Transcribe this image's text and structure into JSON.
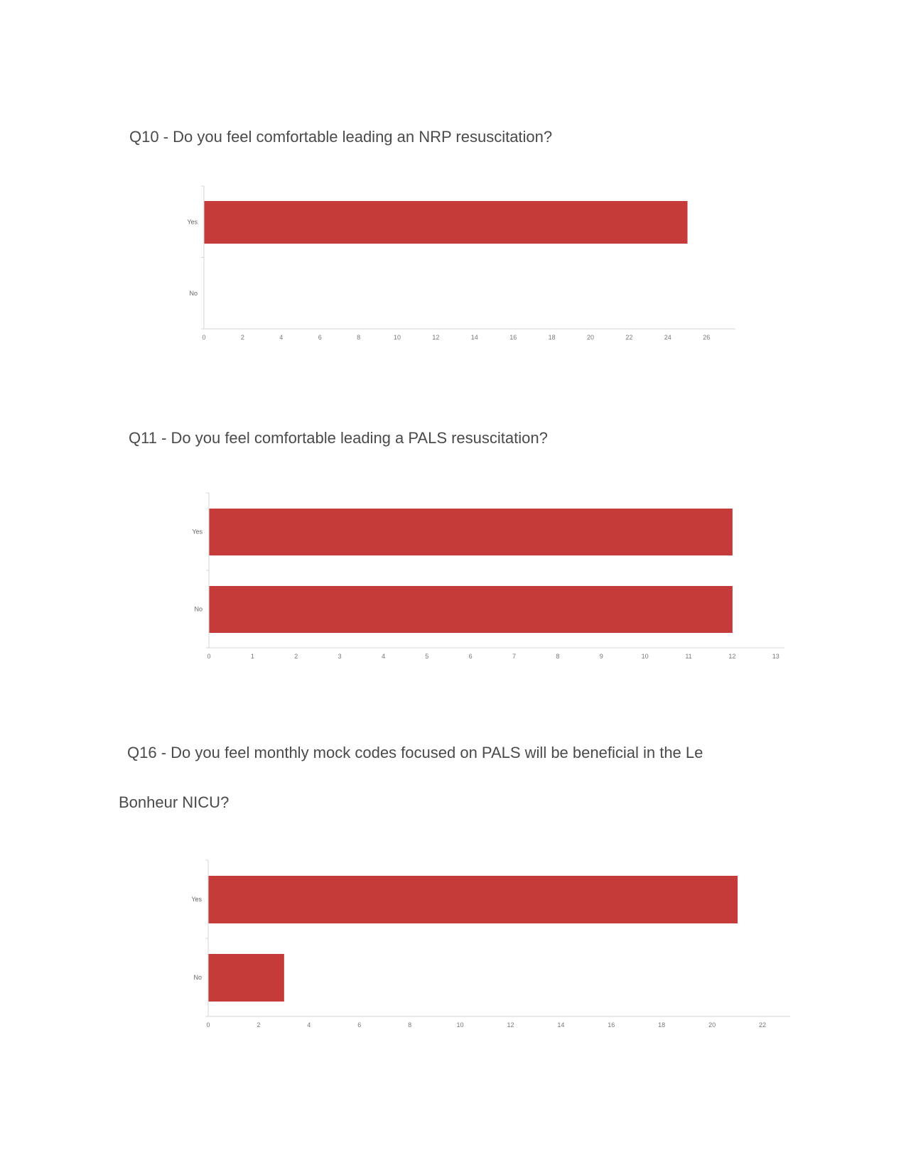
{
  "chart_data": [
    {
      "type": "bar",
      "orientation": "horizontal",
      "title": "Q10 - Do you feel comfortable leading an NRP resuscitation?",
      "categories": [
        "Yes",
        "No"
      ],
      "values": [
        25,
        0
      ],
      "xlim": [
        0,
        27.5
      ],
      "xticks": [
        "0",
        "2",
        "4",
        "6",
        "8",
        "10",
        "12",
        "14",
        "16",
        "18",
        "20",
        "22",
        "24",
        "26"
      ],
      "bar_color": "#c53b3a",
      "grid": false
    },
    {
      "type": "bar",
      "orientation": "horizontal",
      "title": "Q11 - Do you feel comfortable leading a PALS resuscitation?",
      "categories": [
        "Yes",
        "No"
      ],
      "values": [
        12,
        12
      ],
      "xlim": [
        0,
        13.2
      ],
      "xticks": [
        "0",
        "1",
        "2",
        "3",
        "4",
        "5",
        "6",
        "7",
        "8",
        "9",
        "10",
        "11",
        "12",
        "13"
      ],
      "bar_color": "#c53b3a",
      "grid": false
    },
    {
      "type": "bar",
      "orientation": "horizontal",
      "title_line1": "Q16 - Do you feel monthly mock codes focused on PALS will be beneficial in the Le",
      "title_line2": "Bonheur NICU?",
      "categories": [
        "Yes",
        "No"
      ],
      "values": [
        21,
        3
      ],
      "xlim": [
        0,
        23.1
      ],
      "xticks": [
        "0",
        "2",
        "4",
        "6",
        "8",
        "10",
        "12",
        "14",
        "16",
        "18",
        "20",
        "22"
      ],
      "bar_color": "#c53b3a",
      "grid": false
    }
  ]
}
